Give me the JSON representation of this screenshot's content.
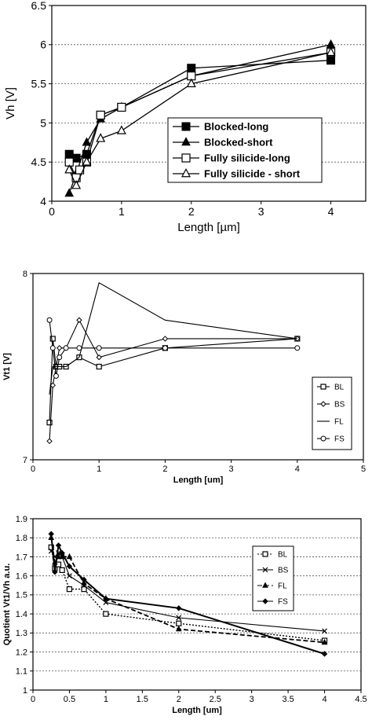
{
  "chart_data": [
    {
      "type": "line",
      "xlabel": "Length [µm]",
      "ylabel": "Vh [V]",
      "xlim": [
        0,
        4.5
      ],
      "ylim": [
        4,
        6.5
      ],
      "xticks": [
        "0",
        "1",
        "2",
        "3",
        "4"
      ],
      "yticks": [
        "4",
        "4.5",
        "5",
        "5.5",
        "6",
        "6.5"
      ],
      "grid": "horizontal dotted",
      "legend_position": "right",
      "series": [
        {
          "name": "Blocked-long",
          "marker": "square-filled",
          "x": [
            0.25,
            0.35,
            0.5,
            0.7,
            1,
            2,
            4
          ],
          "y": [
            4.6,
            4.55,
            4.6,
            5.1,
            5.2,
            5.7,
            5.8
          ]
        },
        {
          "name": "Blocked-short",
          "marker": "triangle-filled",
          "x": [
            0.25,
            0.35,
            0.5,
            0.7,
            1,
            2,
            4
          ],
          "y": [
            4.1,
            4.35,
            4.75,
            5.05,
            5.2,
            5.6,
            6.0
          ]
        },
        {
          "name": "Fully silicide-long",
          "marker": "square-open",
          "x": [
            0.25,
            0.35,
            0.4,
            0.5,
            0.7,
            1,
            2,
            4
          ],
          "y": [
            4.5,
            4.3,
            4.4,
            4.5,
            5.1,
            5.2,
            5.6,
            5.9
          ]
        },
        {
          "name": "Fully silicide - short",
          "marker": "triangle-open",
          "x": [
            0.25,
            0.35,
            0.5,
            0.7,
            1,
            2,
            4
          ],
          "y": [
            4.4,
            4.2,
            4.5,
            4.8,
            4.9,
            5.5,
            5.9
          ]
        }
      ]
    },
    {
      "type": "line",
      "xlabel": "Length [um]",
      "ylabel": "Vt1 [V]",
      "xlim": [
        0,
        5
      ],
      "ylim": [
        7,
        8
      ],
      "xticks": [
        "0",
        "1",
        "2",
        "3",
        "4",
        "5"
      ],
      "yticks": [
        "7",
        "8"
      ],
      "legend_position": "right",
      "series": [
        {
          "name": "BL",
          "marker": "square-open",
          "x": [
            0.25,
            0.3,
            0.35,
            0.4,
            0.5,
            0.7,
            1,
            2,
            4
          ],
          "y": [
            7.2,
            7.65,
            7.5,
            7.5,
            7.5,
            7.55,
            7.5,
            7.6,
            7.65
          ]
        },
        {
          "name": "BS",
          "marker": "diamond-open",
          "x": [
            0.25,
            0.3,
            0.35,
            0.4,
            0.5,
            0.7,
            1,
            2,
            4
          ],
          "y": [
            7.1,
            7.4,
            7.5,
            7.6,
            7.6,
            7.75,
            7.55,
            7.65,
            7.65
          ]
        },
        {
          "name": "FL",
          "marker": "none",
          "x": [
            0.25,
            0.3,
            0.35,
            0.4,
            0.5,
            0.7,
            1,
            2,
            4
          ],
          "y": [
            7.35,
            7.5,
            7.5,
            7.5,
            7.5,
            7.55,
            7.95,
            7.75,
            7.65
          ]
        },
        {
          "name": "FS",
          "marker": "circle-open",
          "x": [
            0.25,
            0.3,
            0.35,
            0.4,
            0.5,
            0.7,
            1,
            2,
            4
          ],
          "y": [
            7.75,
            7.6,
            7.45,
            7.55,
            7.6,
            7.6,
            7.6,
            7.6,
            7.6
          ]
        }
      ]
    },
    {
      "type": "line",
      "xlabel": "Length [um]",
      "ylabel": "Quotient Vt1/Vh a.u.",
      "xlim": [
        0,
        4.5
      ],
      "ylim": [
        1,
        1.9
      ],
      "xticks": [
        "0",
        "0.5",
        "1",
        "1.5",
        "2",
        "2.5",
        "3",
        "3.5",
        "4",
        "4.5"
      ],
      "yticks": [
        "1",
        "1.1",
        "1.2",
        "1.3",
        "1.4",
        "1.5",
        "1.6",
        "1.7",
        "1.8",
        "1.9"
      ],
      "grid": "horizontal dotted",
      "legend_position": "right",
      "series": [
        {
          "name": "BL",
          "marker": "square-open",
          "line": "dotted",
          "x": [
            0.25,
            0.3,
            0.35,
            0.4,
            0.5,
            0.7,
            1,
            2,
            4
          ],
          "y": [
            1.75,
            1.64,
            1.66,
            1.63,
            1.53,
            1.53,
            1.4,
            1.35,
            1.26
          ]
        },
        {
          "name": "BS",
          "marker": "x",
          "line": "solid",
          "x": [
            0.25,
            0.3,
            0.35,
            0.4,
            0.5,
            0.7,
            1,
            2,
            4
          ],
          "y": [
            1.73,
            1.7,
            1.72,
            1.7,
            1.6,
            1.55,
            1.46,
            1.38,
            1.31
          ]
        },
        {
          "name": "FL",
          "marker": "triangle-filled",
          "line": "dashed",
          "x": [
            0.25,
            0.3,
            0.35,
            0.4,
            0.5,
            0.7,
            1,
            2,
            4
          ],
          "y": [
            1.8,
            1.67,
            1.7,
            1.7,
            1.7,
            1.56,
            1.48,
            1.32,
            1.25
          ]
        },
        {
          "name": "FS",
          "marker": "diamond",
          "line": "solid-bold",
          "x": [
            0.25,
            0.3,
            0.35,
            0.4,
            0.5,
            0.7,
            1,
            2,
            4
          ],
          "y": [
            1.82,
            1.62,
            1.76,
            1.72,
            1.65,
            1.58,
            1.48,
            1.43,
            1.19
          ]
        }
      ]
    }
  ]
}
